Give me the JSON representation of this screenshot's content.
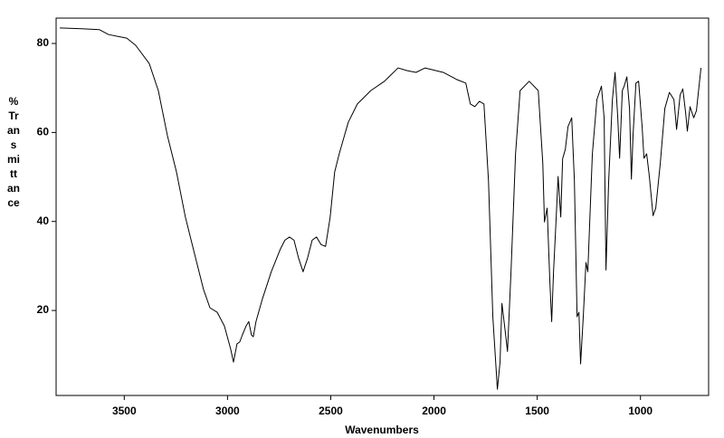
{
  "chart_data": {
    "type": "line",
    "xlabel": "Wavenumbers",
    "ylabel": "% Transmittance",
    "color": "#000000",
    "xlim": [
      3830,
      670
    ],
    "ylim": [
      0.9,
      85.7
    ],
    "xticks": [
      3500,
      3000,
      2500,
      2000,
      1500,
      1000
    ],
    "yticks": [
      20,
      40,
      60,
      80
    ],
    "x": [
      3812,
      3707,
      3620,
      3576,
      3488,
      3445,
      3379,
      3335,
      3291,
      3247,
      3204,
      3160,
      3116,
      3085,
      3050,
      3015,
      2985,
      2971,
      2954,
      2941,
      2928,
      2910,
      2897,
      2884,
      2875,
      2862,
      2831,
      2788,
      2744,
      2722,
      2700,
      2678,
      2656,
      2634,
      2612,
      2590,
      2569,
      2547,
      2525,
      2503,
      2481,
      2459,
      2415,
      2371,
      2306,
      2240,
      2218,
      2174,
      2131,
      2087,
      2043,
      1955,
      1890,
      1846,
      1824,
      1802,
      1780,
      1758,
      1736,
      1715,
      1693,
      1680,
      1671,
      1658,
      1644,
      1627,
      1605,
      1583,
      1539,
      1495,
      1473,
      1465,
      1452,
      1439,
      1430,
      1421,
      1408,
      1399,
      1386,
      1377,
      1364,
      1351,
      1333,
      1320,
      1307,
      1298,
      1290,
      1277,
      1264,
      1255,
      1233,
      1211,
      1189,
      1176,
      1167,
      1154,
      1136,
      1123,
      1110,
      1101,
      1088,
      1079,
      1066,
      1053,
      1044,
      1036,
      1022,
      1009,
      992,
      983,
      970,
      957,
      939,
      926,
      904,
      882,
      860,
      838,
      825,
      808,
      795,
      781,
      773,
      760,
      742,
      729,
      707
    ],
    "values": [
      83.5,
      83.3,
      83.1,
      82.0,
      81.2,
      79.6,
      75.5,
      69.4,
      59.3,
      51.1,
      41.0,
      32.8,
      24.7,
      20.6,
      19.6,
      16.5,
      11.4,
      8.4,
      12.5,
      12.9,
      14.5,
      16.5,
      17.5,
      14.5,
      14.1,
      17.5,
      22.6,
      28.7,
      33.8,
      35.8,
      36.5,
      35.8,
      31.8,
      28.7,
      31.8,
      35.8,
      36.5,
      34.8,
      34.4,
      40.9,
      51.1,
      55.2,
      62.3,
      66.4,
      69.4,
      71.5,
      72.5,
      74.5,
      73.9,
      73.5,
      74.5,
      73.5,
      71.9,
      71.1,
      66.4,
      65.8,
      67.0,
      66.4,
      49.1,
      18.6,
      2.3,
      8.4,
      21.6,
      16.5,
      10.8,
      28.7,
      55.2,
      69.4,
      71.5,
      69.4,
      53.1,
      39.9,
      43.0,
      26.7,
      17.5,
      28.7,
      41.0,
      50.1,
      41.0,
      54.1,
      56.2,
      61.3,
      63.3,
      49.1,
      18.6,
      19.6,
      8.0,
      18.6,
      30.8,
      28.7,
      55.2,
      67.4,
      70.4,
      63.3,
      29.1,
      49.1,
      67.4,
      73.5,
      63.3,
      54.2,
      69.4,
      70.4,
      72.5,
      65.4,
      49.5,
      59.3,
      71.1,
      71.5,
      61.3,
      54.2,
      55.2,
      50.1,
      41.3,
      43.0,
      53.1,
      65.4,
      69.0,
      67.4,
      60.7,
      68.4,
      69.8,
      64.3,
      60.3,
      65.8,
      63.3,
      64.9,
      74.5
    ]
  }
}
